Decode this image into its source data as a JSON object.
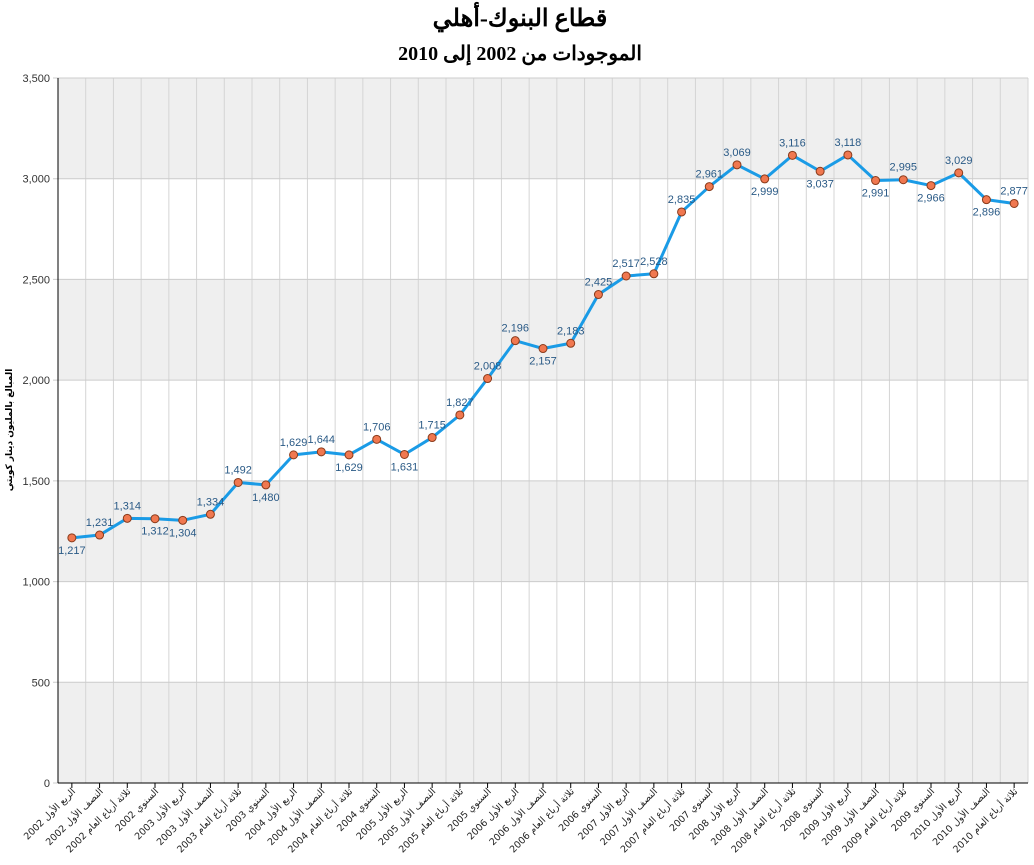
{
  "chart_data": {
    "type": "line",
    "title": "قطاع البنوك-أهلي",
    "subtitle": "الموجودات من 2002 إلى 2010",
    "ylabel": "المبالغ بالمليون دينار كويتي",
    "xlabel": "",
    "ylim": [
      0,
      3500
    ],
    "yticks": [
      0,
      500,
      1000,
      1500,
      2000,
      2500,
      3000,
      3500
    ],
    "ytick_labels": [
      "0",
      "500",
      "1,000",
      "1,500",
      "2,000",
      "2,500",
      "3,000",
      "3,500"
    ],
    "grid": true,
    "legend": "none",
    "colors": {
      "line": "#1a9be6",
      "marker_fill": "#f07850",
      "marker_stroke": "#8a3a1a",
      "band": "#efefef",
      "grid": "#cccccc",
      "label": "#2a5a86"
    },
    "categories": [
      "الربع الأول 2002",
      "النصف الأول 2002",
      "ثلاثة أرباع العام 2002",
      "السنوي 2002",
      "الربع الأول 2003",
      "النصف الأول 2003",
      "ثلاثة أرباع العام 2003",
      "السنوي 2003",
      "الربع الأول 2004",
      "النصف الأول 2004",
      "ثلاثة أرباع العام 2004",
      "السنوي 2004",
      "الربع الأول 2005",
      "النصف الأول 2005",
      "ثلاثة أرباع العام 2005",
      "السنوي 2005",
      "الربع الأول 2006",
      "النصف الأول 2006",
      "ثلاثة أرباع العام 2006",
      "السنوي 2006",
      "الربع الأول 2007",
      "النصف الأول 2007",
      "ثلاثة أرباع العام 2007",
      "السنوي 2007",
      "الربع الأول 2008",
      "النصف الأول 2008",
      "ثلاثة أرباع العام 2008",
      "السنوي 2008",
      "الربع الأول 2009",
      "النصف الأول 2009",
      "ثلاثة أرباع العام 2009",
      "السنوي 2009",
      "الربع الأول 2010",
      "النصف الأول 2010",
      "ثلاثة أرباع العام 2010"
    ],
    "values": [
      1217,
      1231,
      1314,
      1312,
      1304,
      1334,
      1492,
      1480,
      1629,
      1644,
      1629,
      1706,
      1631,
      1715,
      1827,
      2008,
      2196,
      2157,
      2183,
      2425,
      2517,
      2528,
      2835,
      2961,
      3069,
      2999,
      3116,
      3037,
      3118,
      2991,
      2995,
      2966,
      3029,
      2896,
      2877
    ],
    "labels": [
      "1,217",
      "1,231",
      "1,314",
      "1,312",
      "1,304",
      "1,334",
      "1,492",
      "1,480",
      "1,629",
      "1,644",
      "1,629",
      "1,706",
      "1,631",
      "1,715",
      "1,827",
      "2,008",
      "2,196",
      "2,157",
      "2,183",
      "2,425",
      "2,517",
      "2,528",
      "2,835",
      "2,961",
      "3,069",
      "2,999",
      "3,116",
      "3,037",
      "3,118",
      "2,991",
      "2,995",
      "2,966",
      "3,029",
      "2,896",
      "2,877"
    ]
  }
}
